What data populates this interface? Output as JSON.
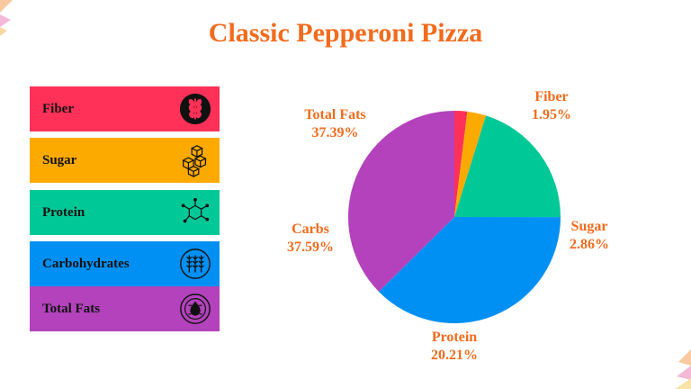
{
  "title": "Classic Pepperoni Pizza",
  "colors": {
    "fiber": "#FF3158",
    "sugar": "#FDAA00",
    "protein": "#00C897",
    "carbs": "#0090F4",
    "fats": "#B342BC",
    "accent": "#F26B1D"
  },
  "legend": [
    {
      "label": "Fiber",
      "icon": "wheat-icon"
    },
    {
      "label": "Sugar",
      "icon": "sugar-cubes-icon"
    },
    {
      "label": "Protein",
      "icon": "molecule-icon"
    },
    {
      "label": "Carbohydrates",
      "icon": "grain-icon"
    },
    {
      "label": "Total Fats",
      "icon": "oil-icon"
    }
  ],
  "chart_data": {
    "type": "pie",
    "title": "Classic Pepperoni Pizza",
    "slices": [
      {
        "label": "Fiber",
        "value": 1.95,
        "display": "1.95%"
      },
      {
        "label": "Sugar",
        "value": 2.86,
        "display": "2.86%"
      },
      {
        "label": "Protein",
        "value": 20.21,
        "display": "20.21%"
      },
      {
        "label": "Carbs",
        "value": 37.59,
        "display": "37.59%"
      },
      {
        "label": "Total Fats",
        "value": 37.39,
        "display": "37.39%"
      }
    ]
  }
}
